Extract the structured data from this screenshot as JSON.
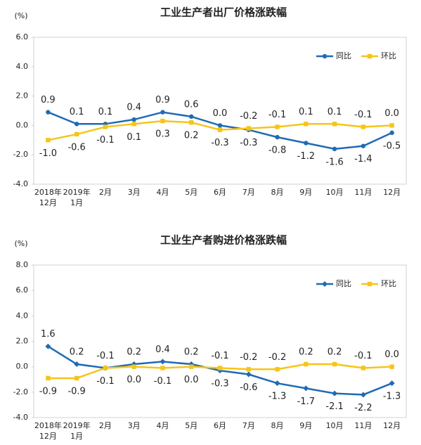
{
  "chart_data": [
    {
      "type": "line",
      "title": "工业生产者出厂价格涨跌幅",
      "y_label": "(%)",
      "categories": [
        "2018年12月",
        "2019年1月",
        "2月",
        "3月",
        "4月",
        "5月",
        "6月",
        "7月",
        "8月",
        "9月",
        "10月",
        "11月",
        "12月"
      ],
      "series": [
        {
          "name": "同比",
          "color": "#1f6bb5",
          "marker": "circle",
          "values": [
            0.9,
            0.1,
            0.1,
            0.4,
            0.9,
            0.6,
            0.0,
            -0.3,
            -0.8,
            -1.2,
            -1.6,
            -1.4,
            -0.5
          ],
          "value_labels": [
            "0.9",
            "0.1",
            "0.1",
            "0.4",
            "0.9",
            "0.6",
            "0.0",
            "-0.3",
            "-0.8",
            "-1.2",
            "-1.6",
            "-1.4",
            "-0.5"
          ]
        },
        {
          "name": "环比",
          "color": "#f5c518",
          "marker": "square",
          "values": [
            -1.0,
            -0.6,
            -0.1,
            0.1,
            0.3,
            0.2,
            -0.3,
            -0.2,
            -0.1,
            0.1,
            0.1,
            -0.1,
            0.0
          ],
          "value_labels": [
            "-1.0",
            "-0.6",
            "-0.1",
            "0.1",
            "0.3",
            "0.2",
            "-0.3",
            "-0.2",
            "-0.1",
            "0.1",
            "0.1",
            "-0.1",
            "0.0"
          ]
        }
      ],
      "ylim": [
        -4,
        6
      ],
      "yticks": [
        {
          "value": -4,
          "label": "-4.0"
        },
        {
          "value": -2,
          "label": "-2.0"
        },
        {
          "value": 0,
          "label": "0.0"
        },
        {
          "value": 2,
          "label": "2.0"
        },
        {
          "value": 4,
          "label": "4.0"
        },
        {
          "value": 6,
          "label": "6.0"
        }
      ],
      "grid": false,
      "legend": "top-right"
    },
    {
      "type": "line",
      "title": "工业生产者购进价格涨跌幅",
      "y_label": "(%)",
      "categories": [
        "2018年12月",
        "2019年1月",
        "2月",
        "3月",
        "4月",
        "5月",
        "6月",
        "7月",
        "8月",
        "9月",
        "10月",
        "11月",
        "12月"
      ],
      "series": [
        {
          "name": "同比",
          "color": "#1f6bb5",
          "marker": "diamond",
          "values": [
            1.6,
            0.2,
            -0.1,
            0.2,
            0.4,
            0.2,
            -0.3,
            -0.6,
            -1.3,
            -1.7,
            -2.1,
            -2.2,
            -1.3
          ],
          "value_labels": [
            "1.6",
            "0.2",
            "-0.1",
            "0.2",
            "0.4",
            "0.2",
            "-0.3",
            "-0.6",
            "-1.3",
            "-1.7",
            "-2.1",
            "-2.2",
            "-1.3"
          ]
        },
        {
          "name": "环比",
          "color": "#f5c518",
          "marker": "square",
          "values": [
            -0.9,
            -0.9,
            -0.1,
            0.0,
            -0.1,
            0.0,
            -0.1,
            -0.2,
            -0.2,
            0.2,
            0.2,
            -0.1,
            0.0
          ],
          "value_labels": [
            "-0.9",
            "-0.9",
            "-0.1",
            "0.0",
            "-0.1",
            "0.0",
            "-0.1",
            "-0.2",
            "-0.2",
            "0.2",
            "0.2",
            "-0.1",
            "0.0"
          ]
        }
      ],
      "ylim": [
        -4,
        8
      ],
      "yticks": [
        {
          "value": -4,
          "label": "-4.0"
        },
        {
          "value": -2,
          "label": "-2.0"
        },
        {
          "value": 0,
          "label": "0.0"
        },
        {
          "value": 2,
          "label": "2.0"
        },
        {
          "value": 4,
          "label": "4.0"
        },
        {
          "value": 6,
          "label": "6.0"
        },
        {
          "value": 8,
          "label": "8.0"
        }
      ],
      "grid": false,
      "legend": "top-right"
    }
  ]
}
